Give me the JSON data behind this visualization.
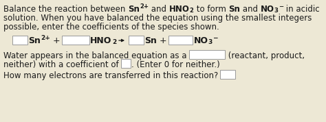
{
  "background_color": "#ede8d5",
  "text_color": "#1a1a1a",
  "box_facecolor": "#ffffff",
  "box_edgecolor": "#999999",
  "font_size": 8.5,
  "eq_font_size": 9.0,
  "line1_normal": "Balance the reaction between ",
  "line1_end": " in acidic",
  "line2": "solution. When you have balanced the equation using the smallest integers",
  "line3": "possible, enter the coefficients of the species shown.",
  "water1": "Water appears in the balanced equation as a",
  "water1_end": "(reactant, product,",
  "water2_start": "neither) with a coefficient of",
  "water2_end": ". (Enter 0 for neither.)",
  "last": "How many electrons are transferred in this reaction?"
}
